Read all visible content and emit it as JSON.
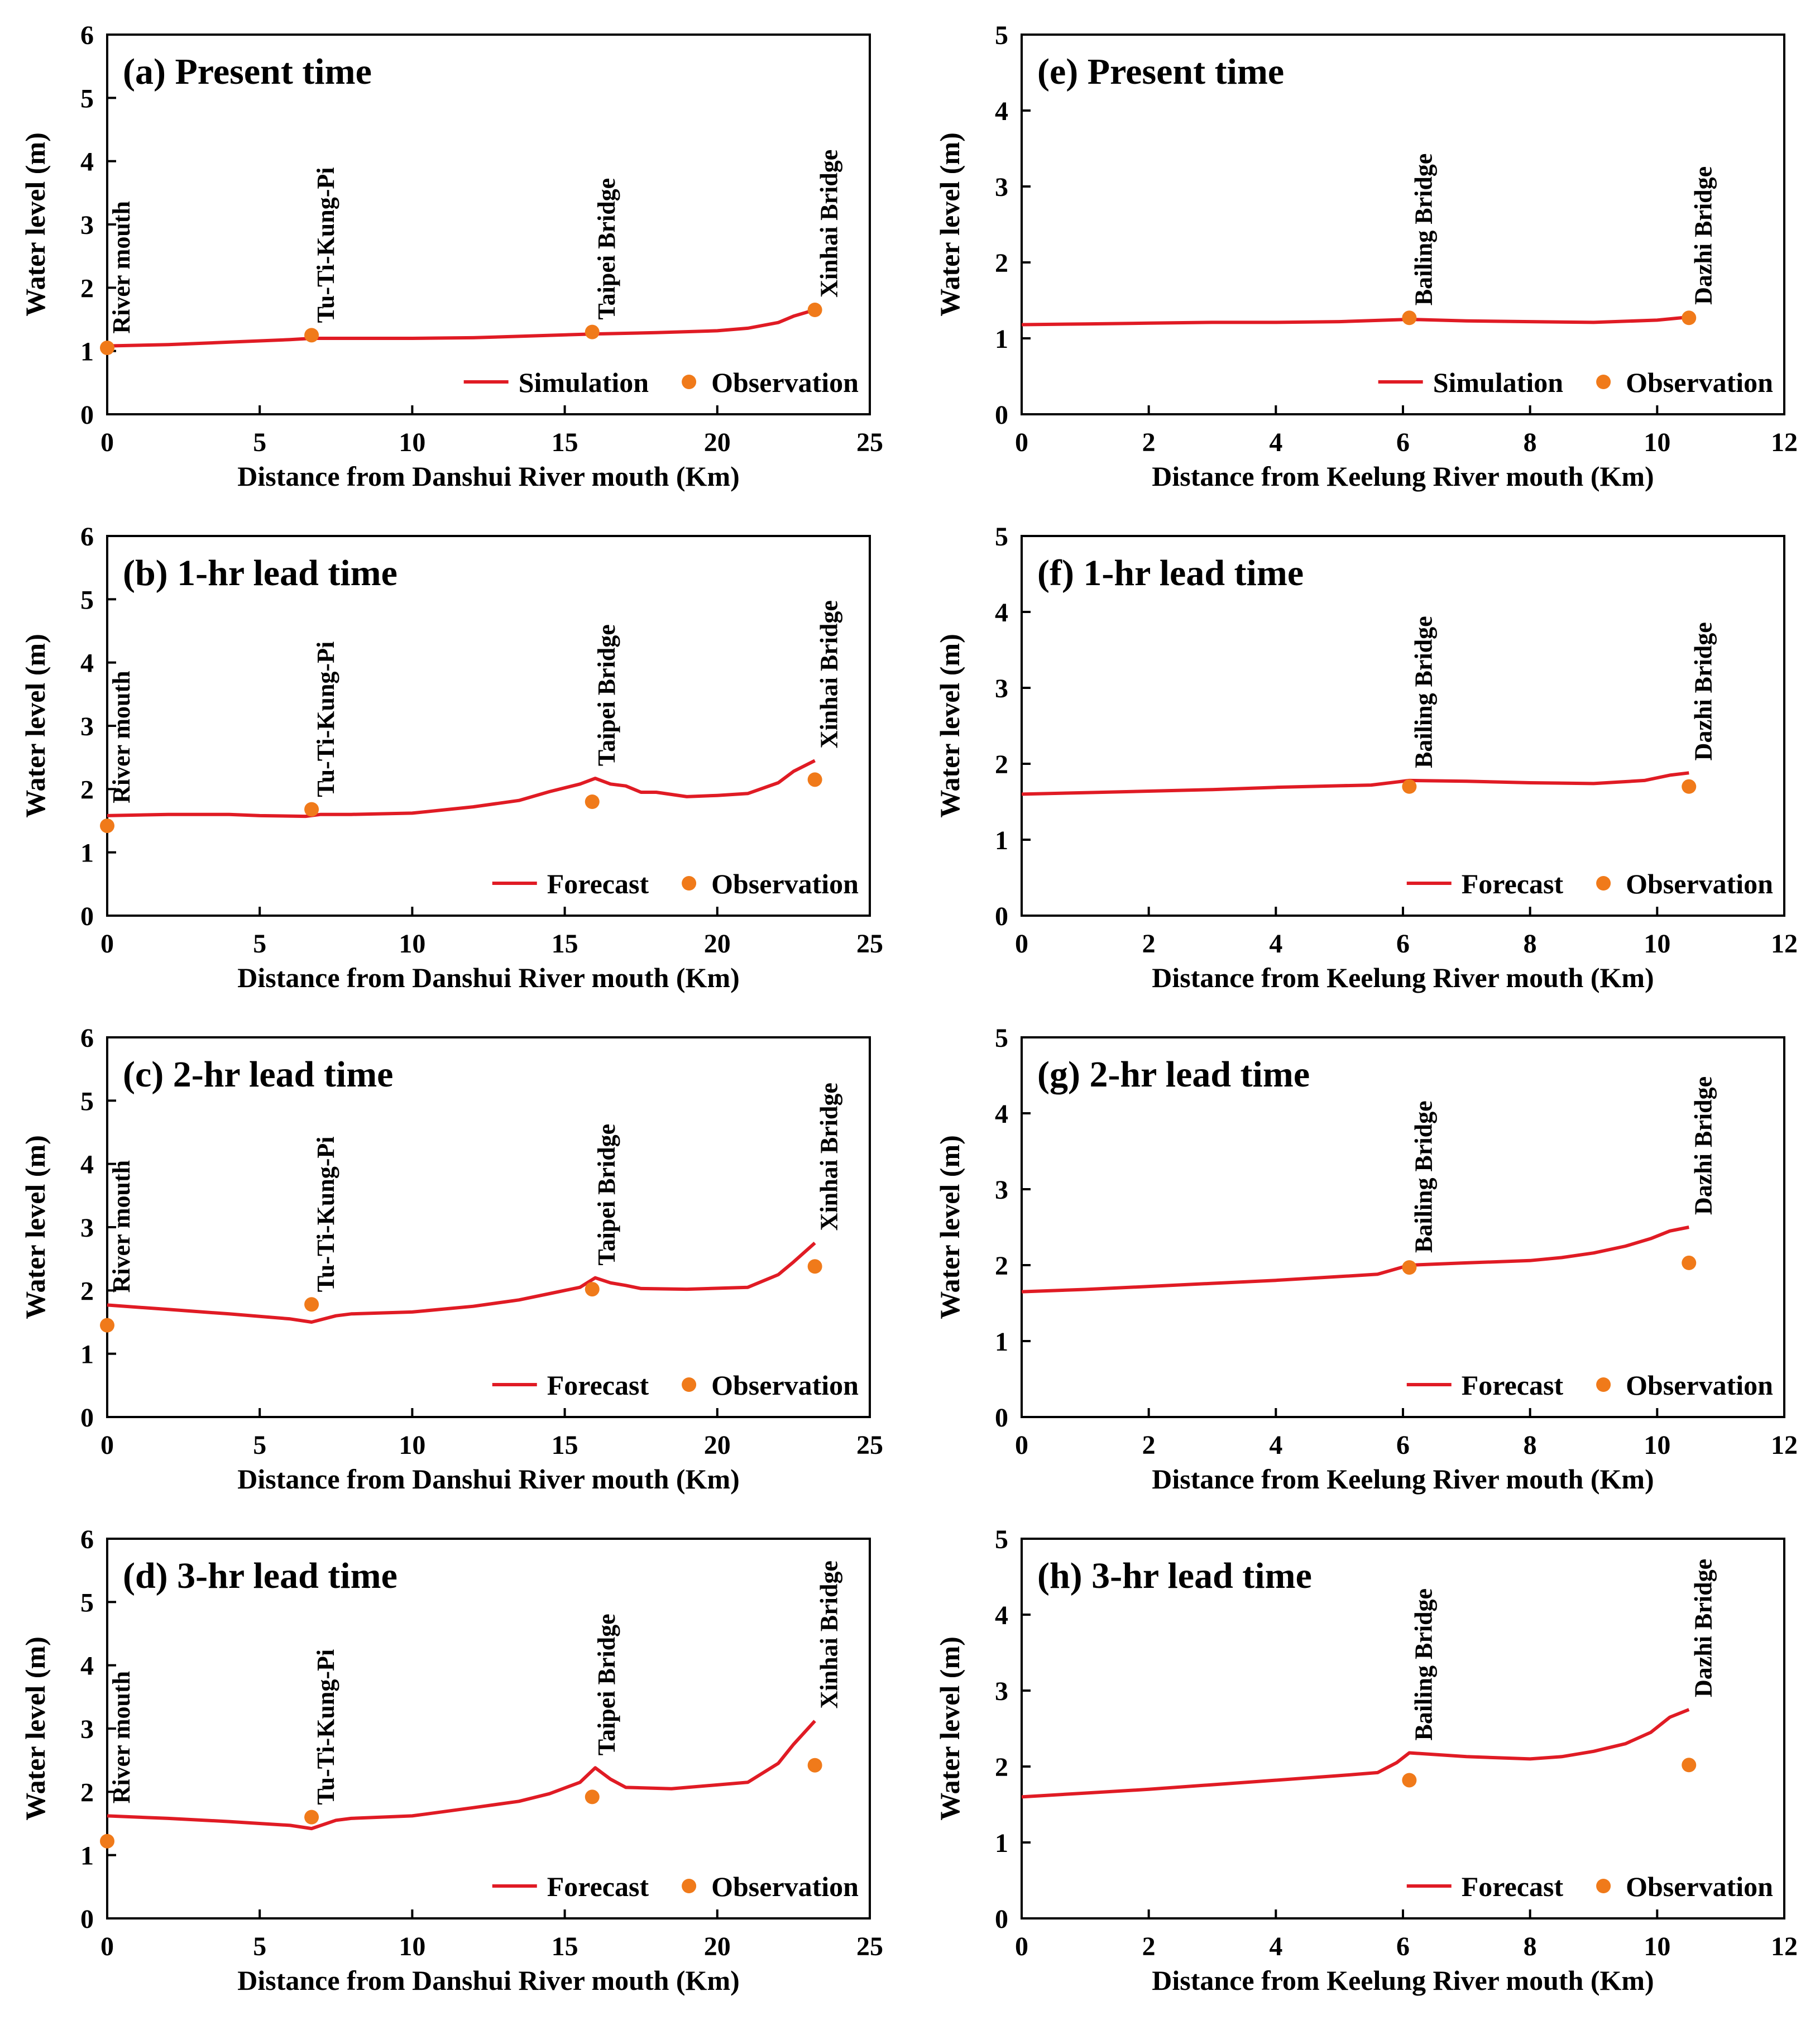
{
  "figure": {
    "colors": {
      "line": "#e01b24",
      "point": "#f07a1a",
      "axis": "#000000",
      "background": "#ffffff"
    },
    "legend_position": "bottom-right",
    "point_legend_label": "Observation",
    "ylabel": "Water level (m)",
    "danshui_xlabel": "Distance from Danshui River mouth (Km)",
    "keelung_xlabel": "Distance from Keelung River mouth (Km)"
  },
  "chart_data": [
    {
      "id": "a",
      "type": "line",
      "title": "(a) Present time",
      "xlabel": "Distance from Danshui River mouth (Km)",
      "ylabel": "Water level (m)",
      "xlim": [
        0,
        25
      ],
      "ylim": [
        0,
        6
      ],
      "xticks": [
        "0",
        "5",
        "10",
        "15",
        "20",
        "25"
      ],
      "yticks": [
        "0",
        "1",
        "2",
        "3",
        "4",
        "5",
        "6"
      ],
      "stations": [
        {
          "name": "River mouth",
          "x": 0
        },
        {
          "name": "Tu-Ti-Kung-Pi",
          "x": 6.7
        },
        {
          "name": "Taipei Bridge",
          "x": 15.9
        },
        {
          "name": "Xinhai Bridge",
          "x": 23.2
        }
      ],
      "series": [
        {
          "name": "Simulation",
          "kind": "line",
          "x": [
            0,
            2,
            4,
            6,
            6.7,
            8,
            10,
            12,
            14,
            16,
            18,
            20,
            21,
            22,
            22.5,
            23.2
          ],
          "y": [
            1.08,
            1.1,
            1.14,
            1.18,
            1.2,
            1.2,
            1.2,
            1.21,
            1.24,
            1.27,
            1.29,
            1.32,
            1.36,
            1.45,
            1.55,
            1.65
          ]
        },
        {
          "name": "Observation",
          "kind": "points",
          "x": [
            0,
            6.7,
            15.9,
            23.2
          ],
          "y": [
            1.05,
            1.25,
            1.3,
            1.65
          ]
        }
      ]
    },
    {
      "id": "b",
      "type": "line",
      "title": "(b) 1-hr lead time",
      "xlabel": "Distance from Danshui River mouth (Km)",
      "ylabel": "Water level (m)",
      "xlim": [
        0,
        25
      ],
      "ylim": [
        0,
        6
      ],
      "xticks": [
        "0",
        "5",
        "10",
        "15",
        "20",
        "25"
      ],
      "yticks": [
        "0",
        "1",
        "2",
        "3",
        "4",
        "5",
        "6"
      ],
      "stations": [
        {
          "name": "River mouth",
          "x": 0
        },
        {
          "name": "Tu-Ti-Kung-Pi",
          "x": 6.7
        },
        {
          "name": "Taipei Bridge",
          "x": 15.9
        },
        {
          "name": "Xinhai Bridge",
          "x": 23.2
        }
      ],
      "series": [
        {
          "name": "Forecast",
          "kind": "line",
          "x": [
            0,
            2,
            4,
            5,
            6.5,
            7,
            8,
            10,
            12,
            13.5,
            14.5,
            15.5,
            16,
            16.5,
            17,
            17.5,
            18,
            19,
            20,
            21,
            22,
            22.5,
            23.2
          ],
          "y": [
            1.58,
            1.6,
            1.6,
            1.58,
            1.57,
            1.6,
            1.6,
            1.62,
            1.72,
            1.82,
            1.96,
            2.08,
            2.17,
            2.08,
            2.05,
            1.95,
            1.95,
            1.88,
            1.9,
            1.93,
            2.1,
            2.28,
            2.45
          ]
        },
        {
          "name": "Observation",
          "kind": "points",
          "x": [
            0,
            6.7,
            15.9,
            23.2
          ],
          "y": [
            1.42,
            1.68,
            1.8,
            2.15
          ]
        }
      ]
    },
    {
      "id": "c",
      "type": "line",
      "title": "(c) 2-hr lead time",
      "xlabel": "Distance from Danshui River mouth (Km)",
      "ylabel": "Water level (m)",
      "xlim": [
        0,
        25
      ],
      "ylim": [
        0,
        6
      ],
      "xticks": [
        "0",
        "5",
        "10",
        "15",
        "20",
        "25"
      ],
      "yticks": [
        "0",
        "1",
        "2",
        "3",
        "4",
        "5",
        "6"
      ],
      "stations": [
        {
          "name": "River mouth",
          "x": 0
        },
        {
          "name": "Tu-Ti-Kung-Pi",
          "x": 6.7
        },
        {
          "name": "Taipei Bridge",
          "x": 15.9
        },
        {
          "name": "Xinhai Bridge",
          "x": 23.2
        }
      ],
      "series": [
        {
          "name": "Forecast",
          "kind": "line",
          "x": [
            0,
            2,
            4,
            6,
            6.7,
            7.5,
            8,
            10,
            12,
            13.5,
            14.5,
            15.5,
            16,
            16.5,
            17,
            17.5,
            19,
            21,
            22,
            22.5,
            23.2
          ],
          "y": [
            1.77,
            1.7,
            1.63,
            1.55,
            1.5,
            1.6,
            1.63,
            1.66,
            1.75,
            1.85,
            1.95,
            2.05,
            2.2,
            2.12,
            2.08,
            2.03,
            2.02,
            2.05,
            2.25,
            2.45,
            2.75
          ]
        },
        {
          "name": "Observation",
          "kind": "points",
          "x": [
            0,
            6.7,
            15.9,
            23.2
          ],
          "y": [
            1.45,
            1.78,
            2.02,
            2.38
          ]
        }
      ]
    },
    {
      "id": "d",
      "type": "line",
      "title": "(d) 3-hr lead time",
      "xlabel": "Distance from Danshui River mouth (Km)",
      "ylabel": "Water level (m)",
      "xlim": [
        0,
        25
      ],
      "ylim": [
        0,
        6
      ],
      "xticks": [
        "0",
        "5",
        "10",
        "15",
        "20",
        "25"
      ],
      "yticks": [
        "0",
        "1",
        "2",
        "3",
        "4",
        "5",
        "6"
      ],
      "stations": [
        {
          "name": "River mouth",
          "x": 0
        },
        {
          "name": "Tu-Ti-Kung-Pi",
          "x": 6.7
        },
        {
          "name": "Taipei Bridge",
          "x": 15.9
        },
        {
          "name": "Xinhai Bridge",
          "x": 23.2
        }
      ],
      "series": [
        {
          "name": "Forecast",
          "kind": "line",
          "x": [
            0,
            2,
            4,
            6,
            6.7,
            7.5,
            8,
            10,
            12,
            13.5,
            14.5,
            15.5,
            16,
            16.5,
            17,
            18.5,
            21,
            22,
            22.5,
            23.2
          ],
          "y": [
            1.62,
            1.58,
            1.53,
            1.47,
            1.42,
            1.55,
            1.58,
            1.62,
            1.75,
            1.85,
            1.97,
            2.15,
            2.38,
            2.2,
            2.07,
            2.05,
            2.15,
            2.45,
            2.75,
            3.12
          ]
        },
        {
          "name": "Observation",
          "kind": "points",
          "x": [
            0,
            6.7,
            15.9,
            23.2
          ],
          "y": [
            1.22,
            1.6,
            1.92,
            2.42
          ]
        }
      ]
    },
    {
      "id": "e",
      "type": "line",
      "title": "(e) Present time",
      "xlabel": "Distance from Keelung River mouth (Km)",
      "ylabel": "Water level (m)",
      "xlim": [
        0,
        12
      ],
      "ylim": [
        0,
        5
      ],
      "xticks": [
        "0",
        "2",
        "4",
        "6",
        "8",
        "10",
        "12"
      ],
      "yticks": [
        "0",
        "1",
        "2",
        "3",
        "4",
        "5"
      ],
      "stations": [
        {
          "name": "Bailing Bridge",
          "x": 6.1
        },
        {
          "name": "Dazhi Bridge",
          "x": 10.5
        }
      ],
      "series": [
        {
          "name": "Simulation",
          "kind": "line",
          "x": [
            0,
            1,
            2,
            3,
            4,
            5,
            6.1,
            7,
            8,
            9,
            10,
            10.5
          ],
          "y": [
            1.18,
            1.19,
            1.2,
            1.21,
            1.21,
            1.22,
            1.25,
            1.23,
            1.22,
            1.21,
            1.24,
            1.28
          ]
        },
        {
          "name": "Observation",
          "kind": "points",
          "x": [
            6.1,
            10.5
          ],
          "y": [
            1.27,
            1.27
          ]
        }
      ]
    },
    {
      "id": "f",
      "type": "line",
      "title": "(f) 1-hr lead time",
      "xlabel": "Distance from Keelung River mouth (Km)",
      "ylabel": "Water level (m)",
      "xlim": [
        0,
        12
      ],
      "ylim": [
        0,
        5
      ],
      "xticks": [
        "0",
        "2",
        "4",
        "6",
        "8",
        "10",
        "12"
      ],
      "yticks": [
        "0",
        "1",
        "2",
        "3",
        "4",
        "5"
      ],
      "stations": [
        {
          "name": "Bailing Bridge",
          "x": 6.1
        },
        {
          "name": "Dazhi Bridge",
          "x": 10.5
        }
      ],
      "series": [
        {
          "name": "Forecast",
          "kind": "line",
          "x": [
            0,
            1,
            2,
            3,
            4,
            5,
            5.5,
            6.1,
            7,
            8,
            9,
            9.8,
            10.2,
            10.5
          ],
          "y": [
            1.6,
            1.62,
            1.64,
            1.66,
            1.69,
            1.71,
            1.72,
            1.78,
            1.77,
            1.75,
            1.74,
            1.78,
            1.85,
            1.88
          ]
        },
        {
          "name": "Observation",
          "kind": "points",
          "x": [
            6.1,
            10.5
          ],
          "y": [
            1.7,
            1.7
          ]
        }
      ]
    },
    {
      "id": "g",
      "type": "line",
      "title": "(g) 2-hr lead time",
      "xlabel": "Distance from Keelung River mouth (Km)",
      "ylabel": "Water level (m)",
      "xlim": [
        0,
        12
      ],
      "ylim": [
        0,
        5
      ],
      "xticks": [
        "0",
        "2",
        "4",
        "6",
        "8",
        "10",
        "12"
      ],
      "yticks": [
        "0",
        "1",
        "2",
        "3",
        "4",
        "5"
      ],
      "stations": [
        {
          "name": "Bailing Bridge",
          "x": 6.1
        },
        {
          "name": "Dazhi Bridge",
          "x": 10.5
        }
      ],
      "series": [
        {
          "name": "Forecast",
          "kind": "line",
          "x": [
            0,
            1,
            2,
            3,
            4,
            5,
            5.6,
            6.1,
            7,
            8,
            8.5,
            9,
            9.5,
            9.9,
            10.2,
            10.5
          ],
          "y": [
            1.65,
            1.68,
            1.72,
            1.76,
            1.8,
            1.85,
            1.88,
            2.0,
            2.03,
            2.06,
            2.1,
            2.16,
            2.25,
            2.35,
            2.45,
            2.5
          ]
        },
        {
          "name": "Observation",
          "kind": "points",
          "x": [
            6.1,
            10.5
          ],
          "y": [
            1.97,
            2.03
          ]
        }
      ]
    },
    {
      "id": "h",
      "type": "line",
      "title": "(h) 3-hr lead time",
      "xlabel": "Distance from Keelung River mouth (Km)",
      "ylabel": "Water level (m)",
      "xlim": [
        0,
        12
      ],
      "ylim": [
        0,
        5
      ],
      "xticks": [
        "0",
        "2",
        "4",
        "6",
        "8",
        "10",
        "12"
      ],
      "yticks": [
        "0",
        "1",
        "2",
        "3",
        "4",
        "5"
      ],
      "stations": [
        {
          "name": "Bailing Bridge",
          "x": 6.1
        },
        {
          "name": "Dazhi Bridge",
          "x": 10.5
        }
      ],
      "series": [
        {
          "name": "Forecast",
          "kind": "line",
          "x": [
            0,
            1,
            2,
            3,
            4,
            5,
            5.6,
            5.9,
            6.1,
            7,
            8,
            8.5,
            9,
            9.5,
            9.9,
            10.2,
            10.5
          ],
          "y": [
            1.6,
            1.65,
            1.7,
            1.76,
            1.82,
            1.88,
            1.92,
            2.05,
            2.18,
            2.13,
            2.1,
            2.13,
            2.2,
            2.3,
            2.45,
            2.65,
            2.75
          ]
        },
        {
          "name": "Observation",
          "kind": "points",
          "x": [
            6.1,
            10.5
          ],
          "y": [
            1.82,
            2.02
          ]
        }
      ]
    }
  ]
}
